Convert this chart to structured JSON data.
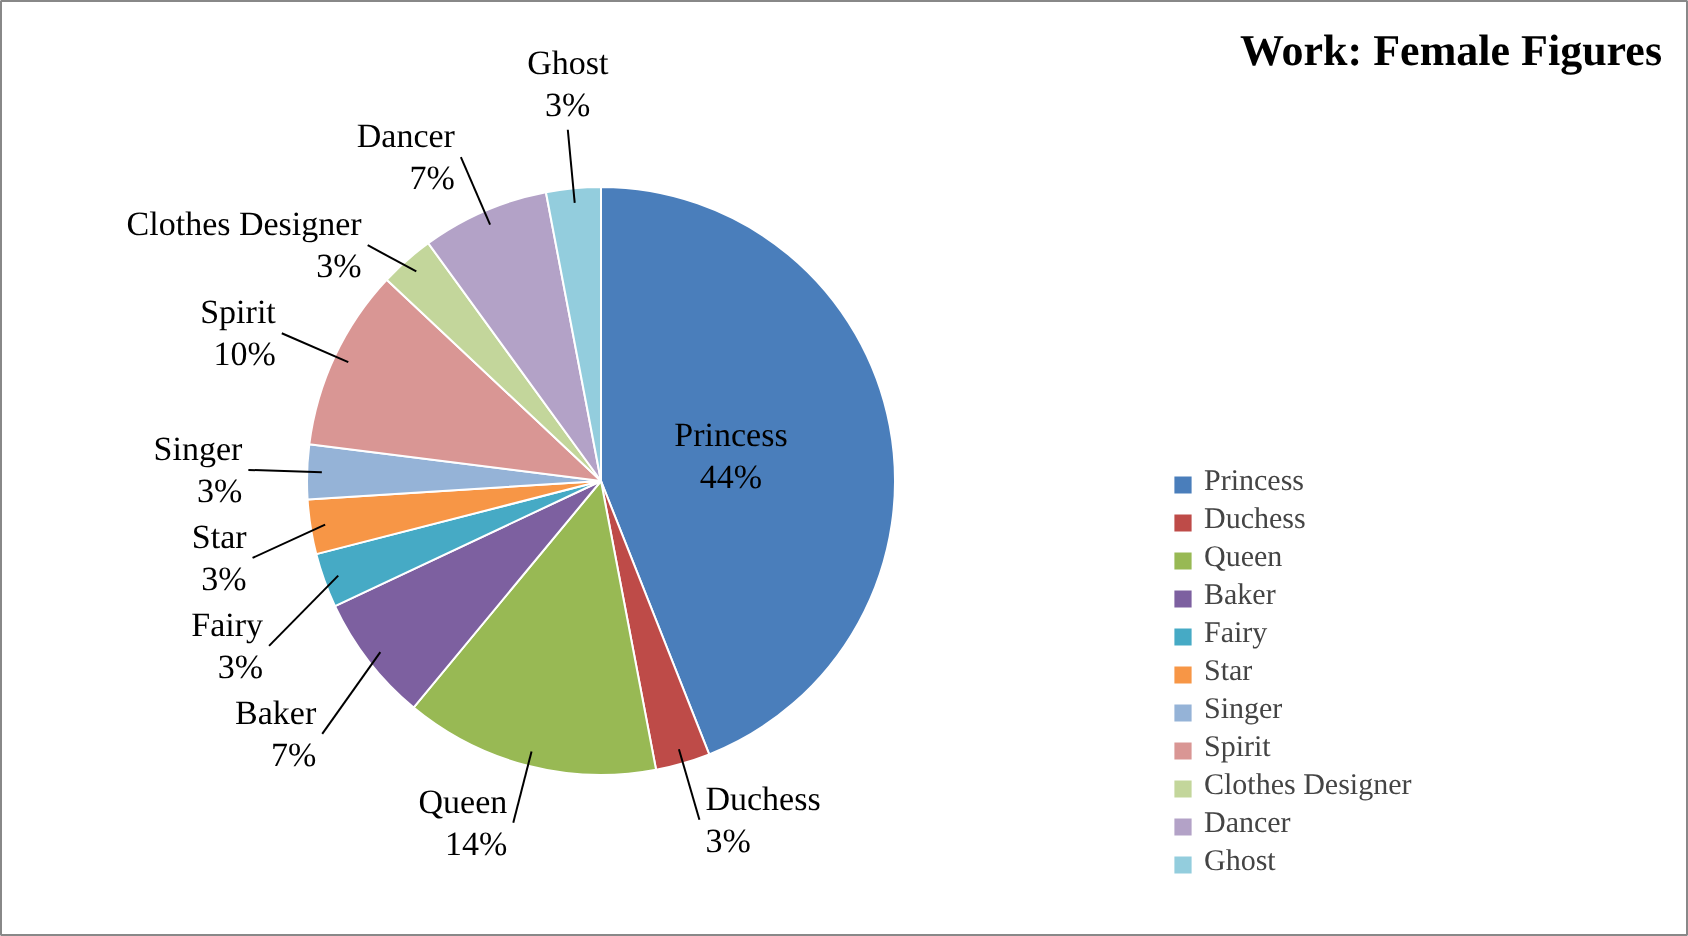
{
  "chart_data": {
    "type": "pie",
    "title": "Work:  Female Figures",
    "categories": [
      "Princess",
      "Duchess",
      "Queen",
      "Baker",
      "Fairy",
      "Star",
      "Singer",
      "Spirit",
      "Clothes Designer",
      "Dancer",
      "Ghost"
    ],
    "values": [
      44,
      3,
      14,
      7,
      3,
      3,
      3,
      10,
      3,
      7,
      3
    ],
    "value_labels": [
      "44%",
      "3%",
      "14%",
      "7%",
      "3%",
      "3%",
      "3%",
      "10%",
      "3%",
      "7%",
      "3%"
    ],
    "colors": [
      "#4a7ebb",
      "#be4b48",
      "#98b954",
      "#7d60a0",
      "#46aac5",
      "#f79646",
      "#95b3d7",
      "#d99694",
      "#c3d69b",
      "#b3a2c7",
      "#93cddd"
    ],
    "legend": "right"
  }
}
